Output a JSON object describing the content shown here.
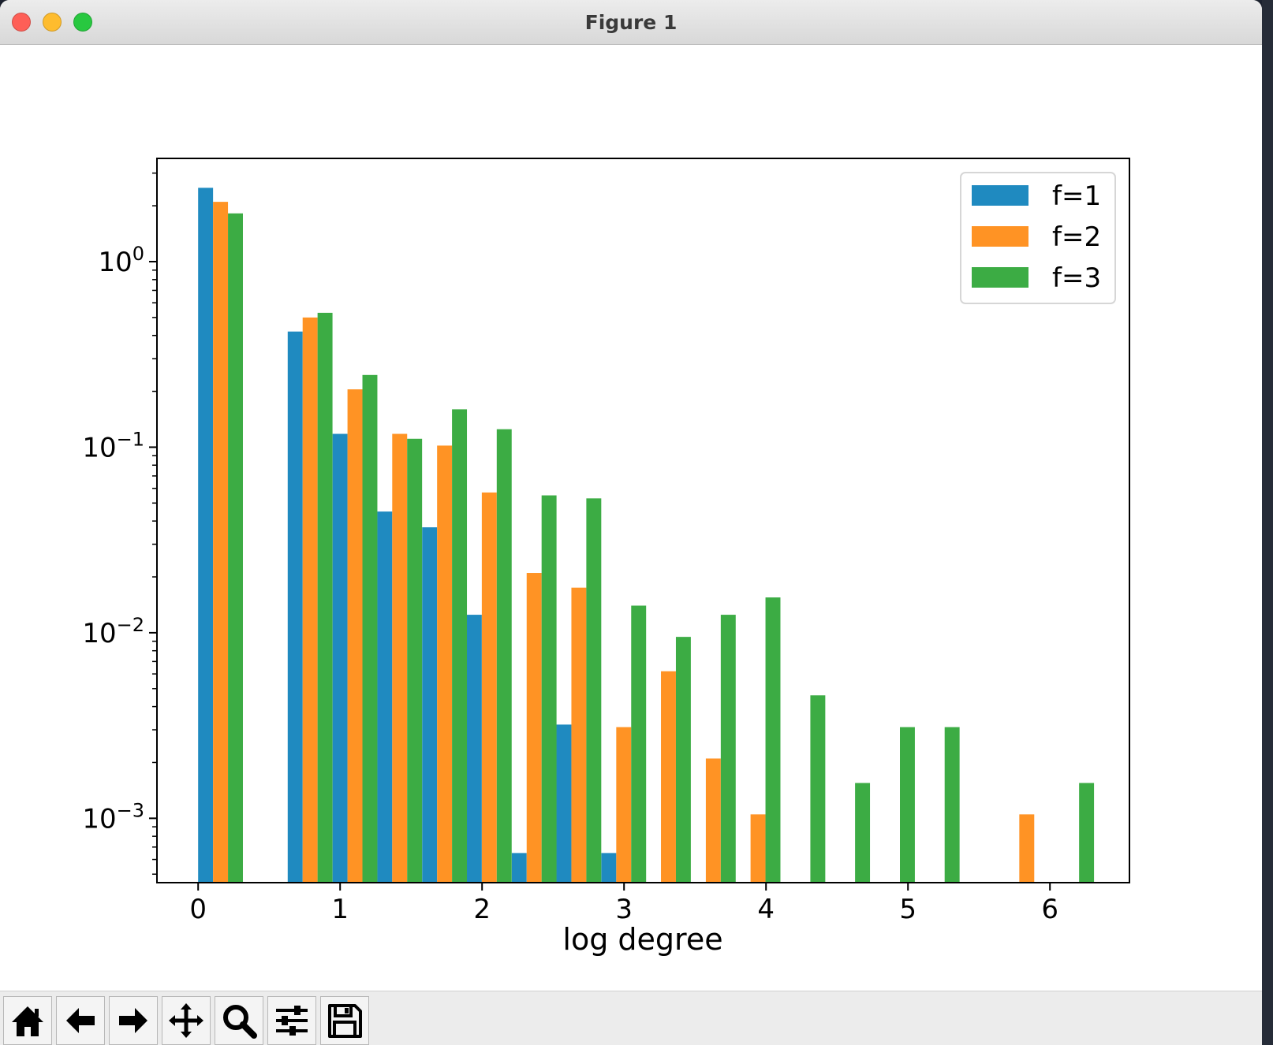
{
  "window": {
    "title": "Figure 1",
    "traffic_lights": [
      {
        "name": "close",
        "color": "#fe5f57"
      },
      {
        "name": "minimize",
        "color": "#febc2e"
      },
      {
        "name": "zoom",
        "color": "#28c840"
      }
    ]
  },
  "toolbar": {
    "buttons": [
      {
        "name": "home",
        "icon": "home-icon"
      },
      {
        "name": "back",
        "icon": "arrow-left-icon"
      },
      {
        "name": "forward",
        "icon": "arrow-right-icon"
      },
      {
        "name": "pan",
        "icon": "move-icon"
      },
      {
        "name": "zoom",
        "icon": "magnifier-icon"
      },
      {
        "name": "configure-subplots",
        "icon": "sliders-icon"
      },
      {
        "name": "save",
        "icon": "floppy-disk-icon"
      }
    ]
  },
  "chart_data": {
    "type": "bar",
    "title": "",
    "xlabel": "log degree",
    "ylabel": "",
    "yscale": "log",
    "xlim": [
      -0.29,
      6.56
    ],
    "ylim": [
      0.00045,
      3.6
    ],
    "xticks": [
      0,
      1,
      2,
      3,
      4,
      5,
      6
    ],
    "yticks": [
      {
        "value": 1,
        "base": "10",
        "exp": "0"
      },
      {
        "value": 0.1,
        "base": "10",
        "exp": "−1"
      },
      {
        "value": 0.01,
        "base": "10",
        "exp": "−2"
      },
      {
        "value": 0.001,
        "base": "10",
        "exp": "−3"
      }
    ],
    "bin_width": 0.3155,
    "bin_starts": [
      0.0,
      0.631,
      0.947,
      1.262,
      1.578,
      1.893,
      2.209,
      2.524,
      2.84,
      3.155,
      3.471,
      3.786,
      4.102,
      4.417,
      4.733,
      5.048,
      5.364,
      5.679,
      5.995
    ],
    "legend": {
      "position": "upper right"
    },
    "series": [
      {
        "name": "f=1",
        "color": "#1f8ac0",
        "values": [
          2.5,
          0.42,
          0.118,
          0.045,
          0.037,
          0.0125,
          0.00065,
          0.0032,
          0.00065,
          null,
          null,
          null,
          null,
          null,
          null,
          null,
          null,
          null,
          null
        ]
      },
      {
        "name": "f=2",
        "color": "#ff9324",
        "values": [
          2.1,
          0.5,
          0.205,
          0.118,
          0.102,
          0.057,
          0.021,
          0.0175,
          0.0031,
          0.0062,
          0.0021,
          0.00105,
          null,
          null,
          null,
          null,
          null,
          0.00105,
          null
        ]
      },
      {
        "name": "f=3",
        "color": "#3cac44",
        "values": [
          1.82,
          0.53,
          0.245,
          0.111,
          0.16,
          0.125,
          0.055,
          0.053,
          0.014,
          0.0095,
          0.0125,
          0.0155,
          0.0046,
          0.00155,
          0.0031,
          0.0031,
          null,
          null,
          0.00155
        ]
      }
    ]
  }
}
